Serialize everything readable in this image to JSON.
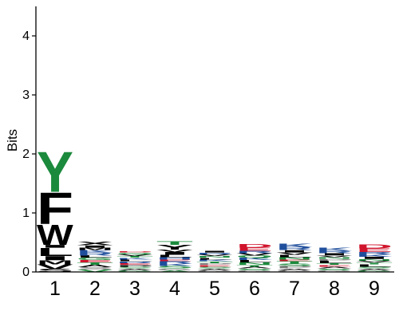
{
  "chart_data": {
    "type": "sequence-logo",
    "ylabel": "Bits",
    "ylim": [
      0,
      4.5
    ],
    "yticks": [
      "0",
      "1",
      "2",
      "3",
      "4"
    ],
    "positions": [
      "1",
      "2",
      "3",
      "4",
      "5",
      "6",
      "7",
      "8",
      "9"
    ],
    "colors": {
      "hydrophobic": "#000000",
      "polar": "#1b8a3c",
      "basic": "#1f4e9c",
      "acidic": "#d0142c",
      "neutral": "#7a7a7a"
    },
    "stacks": [
      {
        "position": "1",
        "letters": [
          {
            "aa": "S",
            "bits": 0.05,
            "color": "#000000"
          },
          {
            "aa": "V",
            "bits": 0.08,
            "color": "#000000"
          },
          {
            "aa": "M",
            "bits": 0.07,
            "color": "#000000"
          },
          {
            "aa": "I",
            "bits": 0.07,
            "color": "#000000"
          },
          {
            "aa": "L",
            "bits": 0.14,
            "color": "#000000"
          },
          {
            "aa": "I",
            "bits": 0.05,
            "color": "#000000"
          },
          {
            "aa": "W",
            "bits": 0.35,
            "color": "#000000"
          },
          {
            "aa": "F",
            "bits": 0.55,
            "color": "#000000"
          },
          {
            "aa": "Y",
            "bits": 0.7,
            "color": "#1b8a3c"
          }
        ]
      },
      {
        "position": "2",
        "letters": [
          {
            "aa": "V",
            "bits": 0.04,
            "color": "#1b8a3c"
          },
          {
            "aa": "S",
            "bits": 0.04,
            "color": "#7a7a7a"
          },
          {
            "aa": "A",
            "bits": 0.04,
            "color": "#000000"
          },
          {
            "aa": "T",
            "bits": 0.04,
            "color": "#1b8a3c"
          },
          {
            "aa": "E",
            "bits": 0.04,
            "color": "#d0142c"
          },
          {
            "aa": "G",
            "bits": 0.04,
            "color": "#1b8a3c"
          },
          {
            "aa": "L",
            "bits": 0.04,
            "color": "#000000"
          },
          {
            "aa": "R",
            "bits": 0.05,
            "color": "#1f4e9c"
          },
          {
            "aa": "K",
            "bits": 0.04,
            "color": "#1f4e9c"
          },
          {
            "aa": "M",
            "bits": 0.04,
            "color": "#000000"
          },
          {
            "aa": "I",
            "bits": 0.04,
            "color": "#000000"
          },
          {
            "aa": "X",
            "bits": 0.06,
            "color": "#000000"
          }
        ]
      },
      {
        "position": "3",
        "letters": [
          {
            "aa": "G",
            "bits": 0.03,
            "color": "#1b8a3c"
          },
          {
            "aa": "A",
            "bits": 0.03,
            "color": "#000000"
          },
          {
            "aa": "S",
            "bits": 0.03,
            "color": "#1b8a3c"
          },
          {
            "aa": "P",
            "bits": 0.03,
            "color": "#000000"
          },
          {
            "aa": "E",
            "bits": 0.03,
            "color": "#d0142c"
          },
          {
            "aa": "R",
            "bits": 0.03,
            "color": "#1f4e9c"
          },
          {
            "aa": "L",
            "bits": 0.03,
            "color": "#000000"
          },
          {
            "aa": "K",
            "bits": 0.03,
            "color": "#1f4e9c"
          },
          {
            "aa": "T",
            "bits": 0.03,
            "color": "#1b8a3c"
          },
          {
            "aa": "V",
            "bits": 0.03,
            "color": "#000000"
          },
          {
            "aa": "Q",
            "bits": 0.03,
            "color": "#1b8a3c"
          },
          {
            "aa": "D",
            "bits": 0.02,
            "color": "#d0142c"
          }
        ]
      },
      {
        "position": "4",
        "letters": [
          {
            "aa": "A",
            "bits": 0.03,
            "color": "#1b8a3c"
          },
          {
            "aa": "G",
            "bits": 0.03,
            "color": "#7a7a7a"
          },
          {
            "aa": "S",
            "bits": 0.04,
            "color": "#1b8a3c"
          },
          {
            "aa": "K",
            "bits": 0.04,
            "color": "#1f4e9c"
          },
          {
            "aa": "R",
            "bits": 0.04,
            "color": "#1f4e9c"
          },
          {
            "aa": "E",
            "bits": 0.03,
            "color": "#d0142c"
          },
          {
            "aa": "H",
            "bits": 0.04,
            "color": "#1f4e9c"
          },
          {
            "aa": "L",
            "bits": 0.04,
            "color": "#000000"
          },
          {
            "aa": "I",
            "bits": 0.05,
            "color": "#000000"
          },
          {
            "aa": "V",
            "bits": 0.04,
            "color": "#000000"
          },
          {
            "aa": "Y",
            "bits": 0.08,
            "color": "#000000"
          },
          {
            "aa": "T",
            "bits": 0.06,
            "color": "#1b8a3c"
          }
        ]
      },
      {
        "position": "5",
        "letters": [
          {
            "aa": "G",
            "bits": 0.03,
            "color": "#7a7a7a"
          },
          {
            "aa": "A",
            "bits": 0.03,
            "color": "#000000"
          },
          {
            "aa": "S",
            "bits": 0.03,
            "color": "#1b8a3c"
          },
          {
            "aa": "E",
            "bits": 0.03,
            "color": "#d0142c"
          },
          {
            "aa": "P",
            "bits": 0.03,
            "color": "#7a7a7a"
          },
          {
            "aa": "T",
            "bits": 0.03,
            "color": "#1b8a3c"
          },
          {
            "aa": "K",
            "bits": 0.03,
            "color": "#1f4e9c"
          },
          {
            "aa": "L",
            "bits": 0.03,
            "color": "#000000"
          },
          {
            "aa": "N",
            "bits": 0.03,
            "color": "#1b8a3c"
          },
          {
            "aa": "V",
            "bits": 0.03,
            "color": "#000000"
          },
          {
            "aa": "R",
            "bits": 0.03,
            "color": "#1f4e9c"
          },
          {
            "aa": "I",
            "bits": 0.03,
            "color": "#000000"
          }
        ]
      },
      {
        "position": "6",
        "letters": [
          {
            "aa": "G",
            "bits": 0.03,
            "color": "#7a7a7a"
          },
          {
            "aa": "S",
            "bits": 0.03,
            "color": "#1b8a3c"
          },
          {
            "aa": "A",
            "bits": 0.03,
            "color": "#000000"
          },
          {
            "aa": "T",
            "bits": 0.03,
            "color": "#1b8a3c"
          },
          {
            "aa": "N",
            "bits": 0.04,
            "color": "#1b8a3c"
          },
          {
            "aa": "L",
            "bits": 0.04,
            "color": "#000000"
          },
          {
            "aa": "K",
            "bits": 0.04,
            "color": "#1f4e9c"
          },
          {
            "aa": "Q",
            "bits": 0.04,
            "color": "#1b8a3c"
          },
          {
            "aa": "V",
            "bits": 0.04,
            "color": "#000000"
          },
          {
            "aa": "R",
            "bits": 0.04,
            "color": "#1f4e9c"
          },
          {
            "aa": "E",
            "bits": 0.05,
            "color": "#d0142c"
          },
          {
            "aa": "D",
            "bits": 0.06,
            "color": "#d0142c"
          }
        ]
      },
      {
        "position": "7",
        "letters": [
          {
            "aa": "G",
            "bits": 0.03,
            "color": "#7a7a7a"
          },
          {
            "aa": "A",
            "bits": 0.03,
            "color": "#000000"
          },
          {
            "aa": "P",
            "bits": 0.04,
            "color": "#7a7a7a"
          },
          {
            "aa": "S",
            "bits": 0.04,
            "color": "#1b8a3c"
          },
          {
            "aa": "T",
            "bits": 0.04,
            "color": "#1b8a3c"
          },
          {
            "aa": "E",
            "bits": 0.03,
            "color": "#d0142c"
          },
          {
            "aa": "N",
            "bits": 0.04,
            "color": "#1b8a3c"
          },
          {
            "aa": "L",
            "bits": 0.04,
            "color": "#000000"
          },
          {
            "aa": "V",
            "bits": 0.04,
            "color": "#000000"
          },
          {
            "aa": "I",
            "bits": 0.04,
            "color": "#000000"
          },
          {
            "aa": "R",
            "bits": 0.05,
            "color": "#1f4e9c"
          },
          {
            "aa": "K",
            "bits": 0.06,
            "color": "#1f4e9c"
          }
        ]
      },
      {
        "position": "8",
        "letters": [
          {
            "aa": "G",
            "bits": 0.03,
            "color": "#7a7a7a"
          },
          {
            "aa": "S",
            "bits": 0.03,
            "color": "#1b8a3c"
          },
          {
            "aa": "A",
            "bits": 0.03,
            "color": "#000000"
          },
          {
            "aa": "E",
            "bits": 0.03,
            "color": "#d0142c"
          },
          {
            "aa": "T",
            "bits": 0.03,
            "color": "#1b8a3c"
          },
          {
            "aa": "L",
            "bits": 0.04,
            "color": "#000000"
          },
          {
            "aa": "P",
            "bits": 0.03,
            "color": "#7a7a7a"
          },
          {
            "aa": "N",
            "bits": 0.03,
            "color": "#1b8a3c"
          },
          {
            "aa": "V",
            "bits": 0.03,
            "color": "#000000"
          },
          {
            "aa": "I",
            "bits": 0.04,
            "color": "#000000"
          },
          {
            "aa": "R",
            "bits": 0.04,
            "color": "#1f4e9c"
          },
          {
            "aa": "K",
            "bits": 0.05,
            "color": "#1f4e9c"
          }
        ]
      },
      {
        "position": "9",
        "letters": [
          {
            "aa": "G",
            "bits": 0.03,
            "color": "#1b8a3c"
          },
          {
            "aa": "A",
            "bits": 0.03,
            "color": "#000000"
          },
          {
            "aa": "S",
            "bits": 0.03,
            "color": "#1b8a3c"
          },
          {
            "aa": "L",
            "bits": 0.04,
            "color": "#000000"
          },
          {
            "aa": "T",
            "bits": 0.03,
            "color": "#1b8a3c"
          },
          {
            "aa": "V",
            "bits": 0.03,
            "color": "#000000"
          },
          {
            "aa": "N",
            "bits": 0.03,
            "color": "#1b8a3c"
          },
          {
            "aa": "I",
            "bits": 0.04,
            "color": "#000000"
          },
          {
            "aa": "K",
            "bits": 0.04,
            "color": "#1f4e9c"
          },
          {
            "aa": "R",
            "bits": 0.04,
            "color": "#1f4e9c"
          },
          {
            "aa": "E",
            "bits": 0.06,
            "color": "#d0142c"
          },
          {
            "aa": "D",
            "bits": 0.07,
            "color": "#d0142c"
          }
        ]
      }
    ]
  }
}
